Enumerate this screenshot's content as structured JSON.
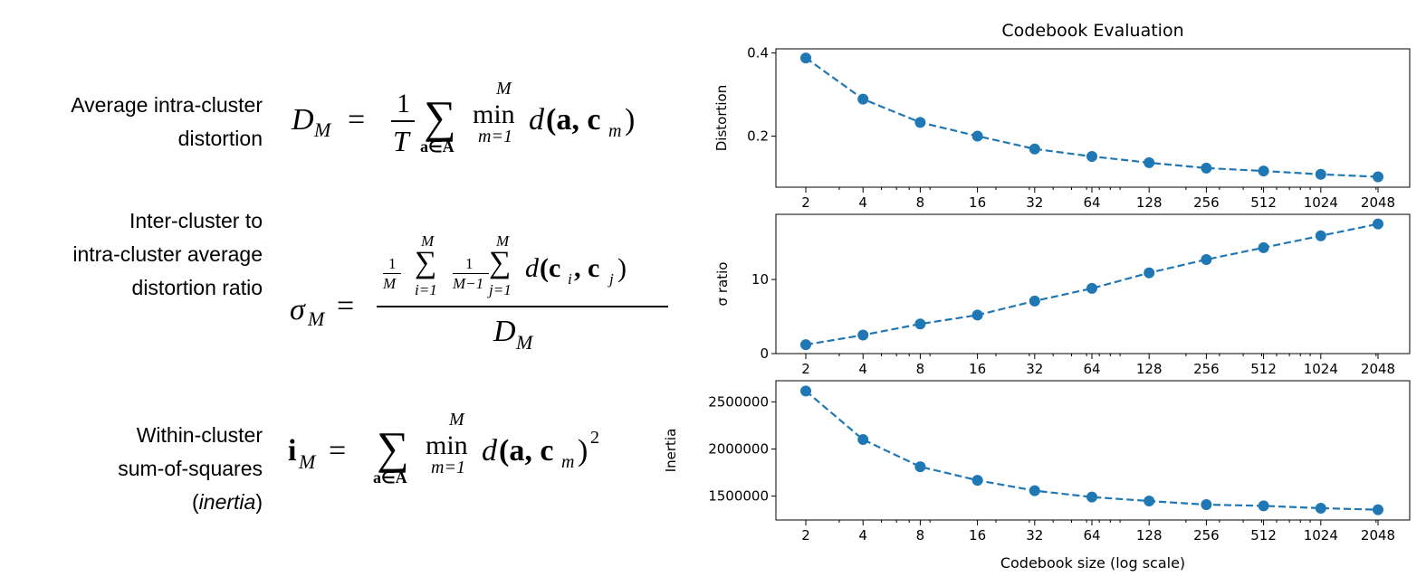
{
  "equations": [
    {
      "label_lines": [
        "Average intra-cluster",
        "distortion"
      ],
      "lhs": "D",
      "lhs_sub": "M",
      "eq": "=",
      "frac_num": "1",
      "frac_den": "T",
      "sum": "∑",
      "sum_under": "a∈A",
      "min": "min",
      "min_over": "M",
      "min_under": "m=1",
      "body_d": "d",
      "body_a": "(a, c",
      "body_sub": "m",
      "body_close": ")"
    },
    {
      "label_lines": [
        "Inter-cluster to",
        "intra-cluster average",
        "distortion ratio"
      ],
      "lhs": "σ",
      "lhs_sub": "M",
      "eq": "=",
      "f1_num": "1",
      "f1_den": "M",
      "sum1_over": "M",
      "sum1_under": "i=1",
      "f2_num": "1",
      "f2_den": "M−1",
      "sum2_over": "M",
      "sum2_under": "j=1",
      "sum": "∑",
      "body_d": "d",
      "body_open": "(c",
      "sub_i": "i",
      "comma": ", c",
      "sub_j": "j",
      "body_close": ")",
      "den": "D",
      "den_sub": "M"
    },
    {
      "label_lines": [
        "Within-cluster",
        "sum-of-squares"
      ],
      "label_paren_open": "(",
      "label_italic": "inertia",
      "label_paren_close": ")",
      "lhs": "i",
      "lhs_sub": "M",
      "eq": "=",
      "sum": "∑",
      "sum_under": "a∈A",
      "min": "min",
      "min_over": "M",
      "min_under": "m=1",
      "body_d": "d",
      "body_a": "(a, c",
      "body_sub": "m",
      "body_close": ")",
      "sup": "2"
    }
  ],
  "chart_data": {
    "type": "line",
    "title": "Codebook Evaluation",
    "xlabel": "Codebook size (log scale)",
    "x": [
      2,
      4,
      8,
      16,
      32,
      64,
      128,
      256,
      512,
      1024,
      2048
    ],
    "xticklabels": [
      "2",
      "4",
      "8",
      "16",
      "32",
      "64",
      "128",
      "256",
      "512",
      "1024",
      "2048"
    ],
    "xscale": "log2",
    "color": "#1f77b4",
    "line_style": "dashed",
    "marker": "circle",
    "panels": [
      {
        "ylabel": "Distortion",
        "ylim": [
          0.077,
          0.41
        ],
        "yticks": [
          0.2,
          0.4
        ],
        "yticklabels": [
          "0.2",
          "0.4"
        ],
        "values": [
          0.388,
          0.289,
          0.233,
          0.2,
          0.169,
          0.151,
          0.136,
          0.123,
          0.116,
          0.108,
          0.102
        ]
      },
      {
        "ylabel": "σ ratio",
        "ylim": [
          0,
          18.8
        ],
        "yticks": [
          0,
          10
        ],
        "yticklabels": [
          "0",
          "10"
        ],
        "values": [
          1.2,
          2.5,
          4.0,
          5.2,
          7.1,
          8.8,
          10.9,
          12.7,
          14.3,
          15.9,
          17.5
        ]
      },
      {
        "ylabel": "Inertia",
        "ylim": [
          1247000,
          2724000
        ],
        "yticks": [
          1500000,
          2000000,
          2500000
        ],
        "yticklabels": [
          "1500000",
          "2000000",
          "2500000"
        ],
        "values": [
          2615000,
          2100000,
          1812000,
          1668000,
          1558000,
          1490000,
          1448000,
          1410000,
          1397000,
          1372000,
          1356000
        ]
      }
    ]
  }
}
